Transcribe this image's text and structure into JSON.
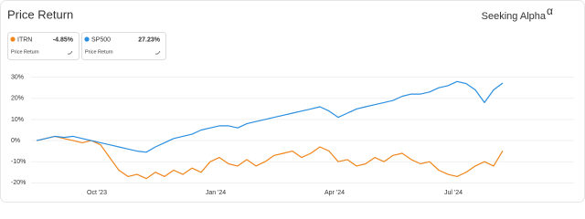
{
  "header": {
    "title": "Price Return",
    "logo": "Seeking Alpha",
    "logo_mark": "α"
  },
  "chart_data": {
    "type": "line",
    "categories": [
      null,
      null,
      null,
      null,
      null,
      null,
      "Oct '23",
      null,
      null,
      null,
      null,
      null,
      null,
      null,
      null,
      null,
      null,
      null,
      null,
      "Jan '24",
      null,
      null,
      null,
      null,
      null,
      null,
      null,
      null,
      null,
      null,
      null,
      null,
      "Apr '24",
      null,
      null,
      null,
      null,
      null,
      null,
      null,
      null,
      null,
      null,
      null,
      null,
      "Jul '24",
      null,
      null,
      null,
      null,
      null,
      null
    ],
    "series": [
      {
        "name": "ITRN",
        "color": "#f0861d",
        "legend_value": "-4.85%",
        "legend_subtitle": "Price Return",
        "values": [
          0,
          1,
          2,
          1,
          0,
          -1,
          0,
          -2,
          -8,
          -14,
          -17,
          -16,
          -18,
          -15,
          -17,
          -14,
          -16,
          -13,
          -15,
          -10,
          -8,
          -11,
          -12,
          -9,
          -12,
          -10,
          -7,
          -6,
          -5,
          -8,
          -6,
          -3,
          -5,
          -10,
          -9,
          -12,
          -11,
          -8,
          -10,
          -7,
          -6,
          -9,
          -11,
          -10,
          -14,
          -16,
          -17,
          -15,
          -12,
          -10,
          -12,
          -4.85
        ]
      },
      {
        "name": "SP500",
        "color": "#2b8fe0",
        "legend_value": "27.23%",
        "legend_subtitle": "Price Return",
        "values": [
          0,
          1,
          2,
          1.5,
          2,
          1,
          0,
          -1,
          -2,
          -3,
          -4,
          -5,
          -5.5,
          -3,
          -1,
          1,
          2,
          3,
          5,
          6,
          7,
          7,
          6,
          8,
          9,
          10,
          11,
          12,
          13,
          14,
          15,
          16,
          14,
          11,
          13,
          15,
          16,
          17,
          18,
          19,
          21,
          22,
          22,
          23,
          25,
          26,
          28,
          27,
          24,
          18,
          24,
          27.23
        ]
      }
    ],
    "ylim": [
      -22,
      32
    ],
    "yticks": [
      {
        "value": -20,
        "label": "-20%"
      },
      {
        "value": -10,
        "label": "-10%"
      },
      {
        "value": 0,
        "label": "0%"
      },
      {
        "value": 10,
        "label": "10%"
      },
      {
        "value": 20,
        "label": "20%"
      },
      {
        "value": 30,
        "label": "30%"
      }
    ],
    "grid": true
  }
}
